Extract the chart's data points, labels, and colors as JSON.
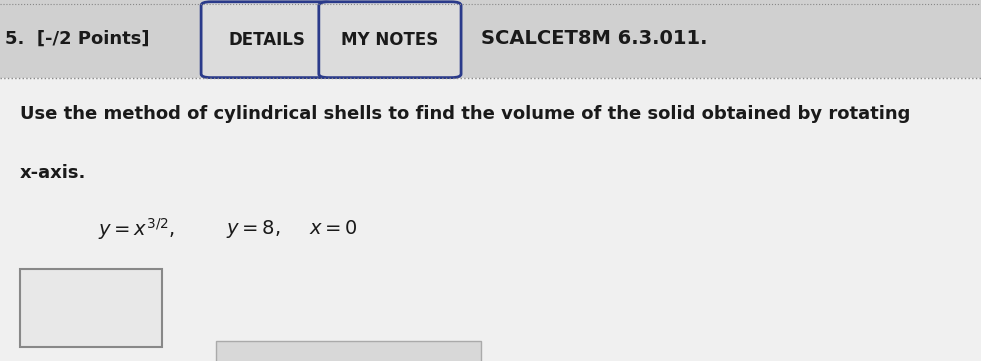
{
  "background_color": "#c8c8c8",
  "content_bg": "#e8e8e8",
  "top_bar_bg": "#d0d0d0",
  "header_text": "5.  [-/2 Points]",
  "btn1_text": "DETAILS",
  "btn2_text": "MY NOTES",
  "scalcet_text": "SCALCET8M 6.3.011.",
  "problem_line1": "Use the method of cylindrical shells to find the volume of the solid obtained by rotating",
  "problem_line2": "x-axis.",
  "dotted_line_color": "#888888",
  "header_font_size": 13,
  "btn_font_size": 12,
  "scalcet_font_size": 14,
  "body_font_size": 13,
  "eq_font_size": 14,
  "btn_edge_color": "#2a3a8a",
  "btn_face_color": "#dcdcdc",
  "answer_box_edge": "#888888",
  "answer_box_face": "#e8e8e8",
  "bottom_box_edge": "#aaaaaa",
  "bottom_box_face": "#d8d8d8"
}
